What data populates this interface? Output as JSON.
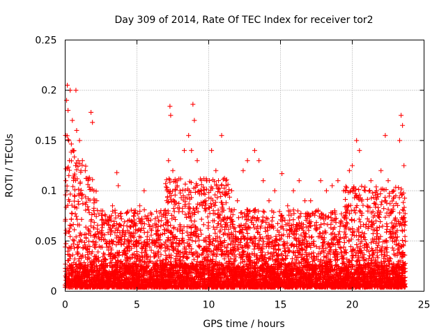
{
  "chart_data": {
    "type": "scatter",
    "title": "Day 309 of 2014, Rate Of TEC Index for receiver tor2",
    "xlabel": "GPS time / hours",
    "ylabel": "ROTI / TECUs",
    "xlim": [
      0,
      25
    ],
    "ylim": [
      0,
      0.25
    ],
    "x_ticks": [
      "0",
      "5",
      "10",
      "15",
      "20",
      "25"
    ],
    "y_ticks": [
      "0",
      "0.05",
      "0.1",
      "0.15",
      "0.2",
      "0.25"
    ],
    "grid": true,
    "marker": "+",
    "color": "#ff0000",
    "x_range_of_data": [
      0,
      23.7
    ],
    "series": [
      {
        "values": [
          [
            0.05,
            0.11
          ],
          [
            0.1,
            0.19
          ],
          [
            0.15,
            0.205
          ],
          [
            0.2,
            0.18
          ],
          [
            0.25,
            0.15
          ],
          [
            0.3,
            0.13
          ],
          [
            0.35,
            0.2
          ],
          [
            0.5,
            0.17
          ],
          [
            0.6,
            0.14
          ],
          [
            0.75,
            0.2
          ],
          [
            0.8,
            0.16
          ],
          [
            0.9,
            0.13
          ],
          [
            1.0,
            0.15
          ],
          [
            1.1,
            0.12
          ],
          [
            1.2,
            0.13
          ],
          [
            1.4,
            0.12
          ],
          [
            1.6,
            0.11
          ],
          [
            1.8,
            0.178
          ],
          [
            1.9,
            0.168
          ],
          [
            2.0,
            0.1
          ],
          [
            2.2,
            0.09
          ],
          [
            2.5,
            0.08
          ],
          [
            2.8,
            0.075
          ],
          [
            3.0,
            0.07
          ],
          [
            3.3,
            0.085
          ],
          [
            3.6,
            0.118
          ],
          [
            3.7,
            0.105
          ],
          [
            4.0,
            0.06
          ],
          [
            4.3,
            0.065
          ],
          [
            4.6,
            0.07
          ],
          [
            4.9,
            0.08
          ],
          [
            5.2,
            0.085
          ],
          [
            5.5,
            0.1
          ],
          [
            5.8,
            0.07
          ],
          [
            6.1,
            0.065
          ],
          [
            6.5,
            0.07
          ],
          [
            6.9,
            0.08
          ],
          [
            7.1,
            0.1
          ],
          [
            7.2,
            0.13
          ],
          [
            7.3,
            0.184
          ],
          [
            7.35,
            0.175
          ],
          [
            7.5,
            0.12
          ],
          [
            7.8,
            0.11
          ],
          [
            8.0,
            0.1
          ],
          [
            8.3,
            0.14
          ],
          [
            8.6,
            0.155
          ],
          [
            8.8,
            0.14
          ],
          [
            8.9,
            0.186
          ],
          [
            9.0,
            0.17
          ],
          [
            9.2,
            0.13
          ],
          [
            9.5,
            0.1
          ],
          [
            9.8,
            0.09
          ],
          [
            10.2,
            0.14
          ],
          [
            10.5,
            0.12
          ],
          [
            10.9,
            0.155
          ],
          [
            11.2,
            0.11
          ],
          [
            11.6,
            0.1
          ],
          [
            12.0,
            0.09
          ],
          [
            12.4,
            0.12
          ],
          [
            12.7,
            0.13
          ],
          [
            13.2,
            0.14
          ],
          [
            13.5,
            0.13
          ],
          [
            13.8,
            0.11
          ],
          [
            14.2,
            0.09
          ],
          [
            14.6,
            0.1
          ],
          [
            15.1,
            0.117
          ],
          [
            15.5,
            0.085
          ],
          [
            15.9,
            0.1
          ],
          [
            16.3,
            0.11
          ],
          [
            16.7,
            0.09
          ],
          [
            17.1,
            0.09
          ],
          [
            17.5,
            0.08
          ],
          [
            17.8,
            0.11
          ],
          [
            18.2,
            0.1
          ],
          [
            18.6,
            0.105
          ],
          [
            19.0,
            0.11
          ],
          [
            19.4,
            0.1
          ],
          [
            19.8,
            0.12
          ],
          [
            20.0,
            0.125
          ],
          [
            20.3,
            0.15
          ],
          [
            20.5,
            0.14
          ],
          [
            20.9,
            0.1
          ],
          [
            21.3,
            0.11
          ],
          [
            21.7,
            0.1
          ],
          [
            22.0,
            0.12
          ],
          [
            22.3,
            0.155
          ],
          [
            22.5,
            0.11
          ],
          [
            22.9,
            0.1
          ],
          [
            23.3,
            0.15
          ],
          [
            23.4,
            0.175
          ],
          [
            23.5,
            0.165
          ],
          [
            23.6,
            0.125
          ]
        ]
      }
    ]
  }
}
